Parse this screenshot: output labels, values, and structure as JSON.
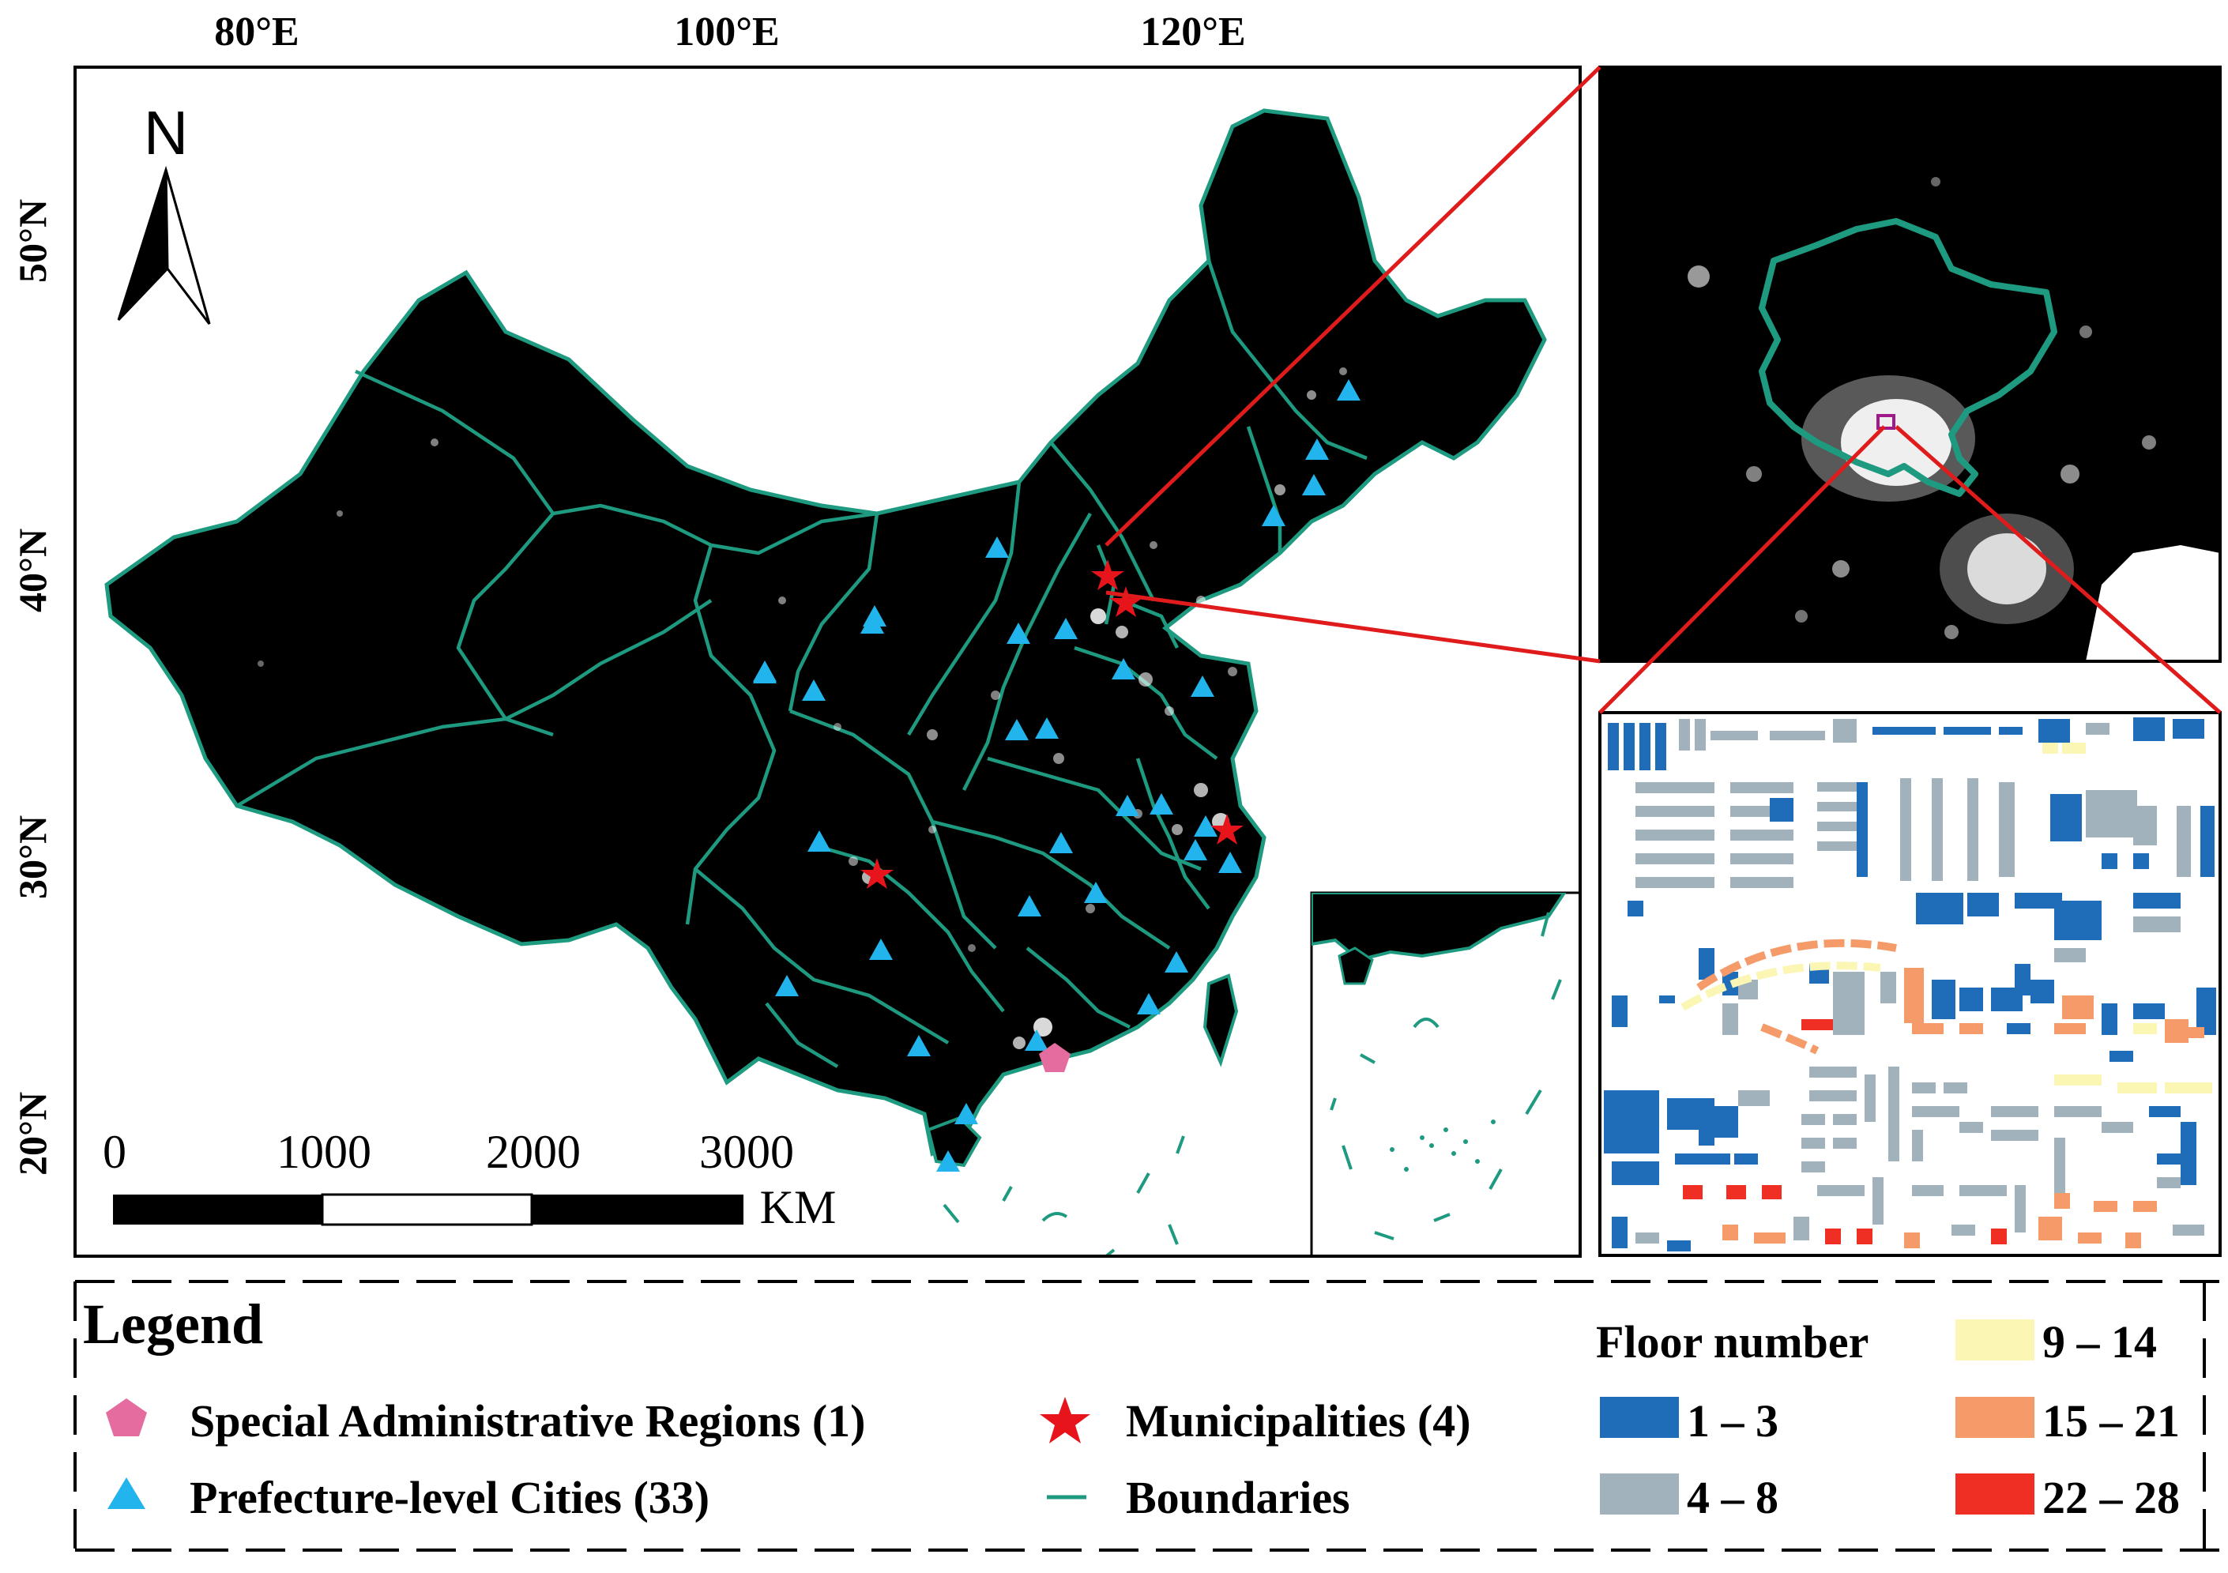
{
  "map": {
    "longitude_labels": [
      "80°E",
      "100°E",
      "120°E"
    ],
    "latitude_labels": [
      "50°N",
      "40°N",
      "30°N",
      "20°N"
    ],
    "north_arrow_label": "N"
  },
  "scale_bar": {
    "ticks": [
      "0",
      "1000",
      "2000",
      "3000"
    ],
    "unit": "KM"
  },
  "legend": {
    "title": "Legend",
    "items": {
      "sar": "Special Administrative Regions (1)",
      "municipalities": "Municipalities (4)",
      "prefecture": "Prefecture-level Cities (33)",
      "boundaries": "Boundaries"
    },
    "floor": {
      "title": "Floor number",
      "classes": [
        {
          "label": "1 – 3",
          "color": "#1f6db8"
        },
        {
          "label": "4 – 8",
          "color": "#a2b2bc"
        },
        {
          "label": "9 – 14",
          "color": "#fbf6b4"
        },
        {
          "label": "15 – 21",
          "color": "#f59b6a"
        },
        {
          "label": "22 – 28",
          "color": "#ef2e24"
        }
      ]
    }
  },
  "colors": {
    "boundary": "#1e9a80",
    "triangle": "#22b4ec",
    "star": "#e8141b",
    "pentagon": "#e46c9e",
    "zoom_line": "#e01b1b",
    "map_bg": "#000000"
  }
}
